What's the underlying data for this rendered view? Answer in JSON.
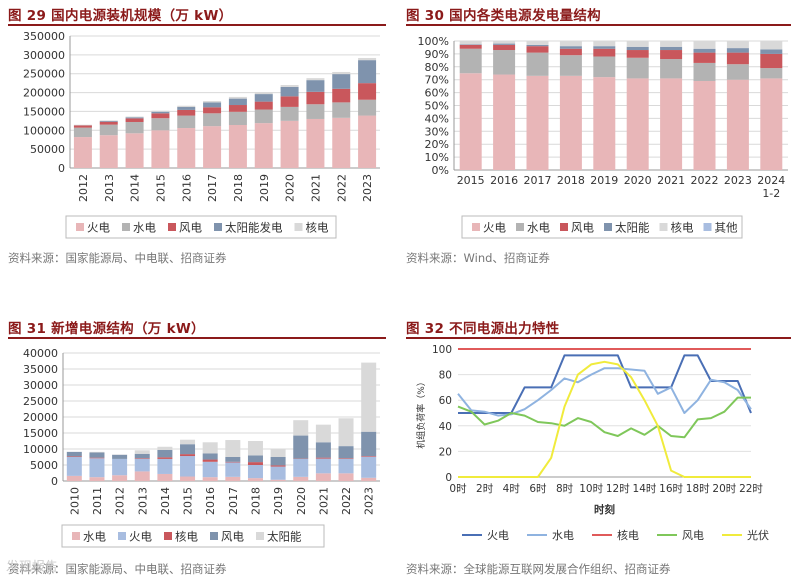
{
  "panels": [
    {
      "title": "图 29 国内电源装机规模（万 kW）",
      "source": "资料来源：国家能源局、中电联、招商证券"
    },
    {
      "title": "图 30 国内各类电源发电量结构",
      "source": "资料来源：Wind、招商证券"
    },
    {
      "title": "图 31 新增电源结构（万 kW）",
      "source": "资料来源：国家能源局、中电联、招商证券"
    },
    {
      "title": "图 32 不同电源出力特性",
      "source": "资料来源：全球能源互联网发展合作组织、招商证券"
    }
  ],
  "watermark": "发现报告",
  "colors": {
    "title": "#8b1a1a",
    "thermal": "#e8b6b8",
    "hydro": "#b3b3b3",
    "wind": "#c9575c",
    "solar": "#7f93ad",
    "nuclear": "#d9d9d9",
    "other": "#a8bde0"
  },
  "chart_data": [
    {
      "type": "bar",
      "stacked": true,
      "categories": [
        "2012",
        "2013",
        "2014",
        "2015",
        "2016",
        "2017",
        "2018",
        "2019",
        "2020",
        "2021",
        "2022",
        "2023"
      ],
      "series": [
        {
          "name": "火电",
          "color": "#e8b6b8",
          "values": [
            82000,
            87000,
            92000,
            100000,
            106000,
            111000,
            114000,
            119000,
            125000,
            130000,
            133000,
            139000
          ]
        },
        {
          "name": "水电",
          "color": "#b3b3b3",
          "values": [
            25000,
            28000,
            30000,
            32000,
            33000,
            34000,
            35000,
            36000,
            37000,
            39000,
            41000,
            42000
          ]
        },
        {
          "name": "风电",
          "color": "#c9575c",
          "values": [
            6000,
            7600,
            9600,
            13000,
            15000,
            16000,
            18000,
            21000,
            28000,
            33000,
            36000,
            44000
          ]
        },
        {
          "name": "太阳能发电",
          "color": "#7f93ad",
          "values": [
            400,
            2000,
            2800,
            4200,
            7700,
            13000,
            17000,
            20000,
            25000,
            31000,
            39000,
            61000
          ]
        },
        {
          "name": "核电",
          "color": "#d9d9d9",
          "values": [
            1300,
            1500,
            2000,
            2700,
            3400,
            3600,
            4500,
            4900,
            5000,
            5300,
            5600,
            5700
          ]
        }
      ],
      "yticks": [
        "0",
        "50000",
        "100000",
        "150000",
        "200000",
        "250000",
        "300000",
        "350000"
      ],
      "ylim": [
        0,
        350000
      ],
      "legend_position": "bottom",
      "grid": true
    },
    {
      "type": "bar",
      "stacked": true,
      "categories": [
        "2015",
        "2016",
        "2017",
        "2018",
        "2019",
        "2020",
        "2021",
        "2022",
        "2023",
        "2024 1-2"
      ],
      "series": [
        {
          "name": "火电",
          "color": "#e8b6b8",
          "values": [
            75,
            74,
            73,
            73,
            72,
            71,
            71,
            69,
            70,
            71
          ]
        },
        {
          "name": "水电",
          "color": "#b3b3b3",
          "values": [
            19,
            19,
            18,
            16,
            16,
            16,
            15,
            14,
            12,
            8
          ]
        },
        {
          "name": "风电",
          "color": "#c9575c",
          "values": [
            3,
            4,
            5,
            5,
            6,
            6,
            7,
            8,
            9,
            11
          ]
        },
        {
          "name": "太阳能",
          "color": "#7f93ad",
          "values": [
            0.5,
            1,
            1,
            2,
            2,
            2.5,
            2.5,
            3,
            3.5,
            3.5
          ]
        },
        {
          "name": "核电",
          "color": "#d9d9d9",
          "values": [
            2.5,
            2,
            3,
            4,
            4,
            4.5,
            4.5,
            6,
            5.5,
            6.5
          ]
        },
        {
          "name": "其他",
          "color": "#a8bde0",
          "values": [
            0,
            0,
            0,
            0,
            0,
            0,
            0,
            0,
            0,
            0
          ]
        }
      ],
      "yticks": [
        "0%",
        "10%",
        "20%",
        "30%",
        "40%",
        "50%",
        "60%",
        "70%",
        "80%",
        "90%",
        "100%"
      ],
      "ylim": [
        0,
        100
      ],
      "legend_position": "bottom",
      "grid": true
    },
    {
      "type": "bar",
      "stacked": true,
      "categories": [
        "2010",
        "2011",
        "2012",
        "2013",
        "2014",
        "2015",
        "2016",
        "2017",
        "2018",
        "2019",
        "2020",
        "2021",
        "2022",
        "2023"
      ],
      "series": [
        {
          "name": "水电",
          "color": "#e8b6b8",
          "values": [
            1600,
            1200,
            1800,
            3000,
            2200,
            1400,
            1200,
            1300,
            900,
            400,
            1300,
            2400,
            2400,
            1000
          ]
        },
        {
          "name": "火电",
          "color": "#a8bde0",
          "values": [
            5900,
            5900,
            5100,
            3900,
            4700,
            6400,
            4800,
            4500,
            4100,
            4100,
            5600,
            4600,
            4500,
            6600
          ]
        },
        {
          "name": "核电",
          "color": "#c9575c",
          "values": [
            200,
            200,
            0,
            200,
            500,
            600,
            700,
            200,
            900,
            400,
            100,
            300,
            200,
            200
          ]
        },
        {
          "name": "风电",
          "color": "#7f93ad",
          "values": [
            1400,
            1600,
            1300,
            1400,
            2300,
            3100,
            1900,
            1500,
            2100,
            2600,
            7200,
            4800,
            3800,
            7600
          ]
        },
        {
          "name": "太阳能",
          "color": "#d9d9d9",
          "values": [
            0,
            200,
            100,
            1100,
            1000,
            1400,
            3500,
            5300,
            4500,
            2600,
            4800,
            5500,
            8700,
            21600
          ]
        }
      ],
      "yticks": [
        "0",
        "5000",
        "10000",
        "15000",
        "20000",
        "25000",
        "30000",
        "35000",
        "40000"
      ],
      "ylim": [
        0,
        40000
      ],
      "legend_position": "bottom",
      "grid": true
    },
    {
      "type": "line",
      "x": [
        "0时",
        "2时",
        "4时",
        "6时",
        "8时",
        "10时",
        "12时",
        "14时",
        "16时",
        "18时",
        "20时",
        "22时"
      ],
      "xlabel": "时刻",
      "ylabel": "机组负荷率（%）",
      "ylim": [
        0,
        100
      ],
      "yticks": [
        "0",
        "20",
        "40",
        "60",
        "80",
        "100"
      ],
      "series": [
        {
          "name": "火电",
          "color": "#4a6fb5",
          "x": [
            0,
            1,
            2,
            3,
            4,
            5,
            6,
            7,
            8,
            9,
            10,
            11,
            12,
            13,
            14,
            15,
            16,
            17,
            18,
            19,
            20,
            21,
            22
          ],
          "values": [
            50,
            50,
            50,
            50,
            50,
            70,
            70,
            70,
            95,
            95,
            95,
            95,
            95,
            70,
            70,
            70,
            70,
            95,
            95,
            75,
            75,
            75,
            50
          ]
        },
        {
          "name": "水电",
          "color": "#8fb3e0",
          "x": [
            0,
            1,
            2,
            3,
            4,
            5,
            6,
            7,
            8,
            9,
            10,
            11,
            12,
            13,
            14,
            15,
            16,
            17,
            18,
            19,
            20,
            21,
            22
          ],
          "values": [
            65,
            52,
            51,
            48,
            49,
            53,
            60,
            68,
            77,
            74,
            80,
            85,
            85,
            84,
            83,
            65,
            70,
            50,
            60,
            76,
            74,
            68,
            53
          ]
        },
        {
          "name": "核电",
          "color": "#e05a5a",
          "x": [
            0,
            22
          ],
          "values": [
            100,
            100
          ]
        },
        {
          "name": "风电",
          "color": "#7fc75a",
          "x": [
            0,
            1,
            2,
            3,
            4,
            5,
            6,
            7,
            8,
            9,
            10,
            11,
            12,
            13,
            14,
            15,
            16,
            17,
            18,
            19,
            20,
            21,
            22
          ],
          "values": [
            55,
            51,
            41,
            44,
            50,
            48,
            43,
            42,
            40,
            46,
            43,
            35,
            32,
            38,
            33,
            40,
            32,
            31,
            45,
            46,
            51,
            62,
            62
          ]
        },
        {
          "name": "光伏",
          "color": "#f0eb3c",
          "x": [
            0,
            1,
            2,
            3,
            4,
            5,
            6,
            7,
            8,
            9,
            10,
            11,
            12,
            13,
            14,
            15,
            16,
            17,
            18,
            19,
            20,
            21,
            22
          ],
          "values": [
            0,
            0,
            0,
            0,
            0,
            0,
            0,
            15,
            55,
            80,
            88,
            90,
            88,
            78,
            60,
            40,
            5,
            0,
            0,
            0,
            0,
            0,
            0
          ]
        }
      ],
      "legend_position": "bottom",
      "grid": true
    }
  ]
}
